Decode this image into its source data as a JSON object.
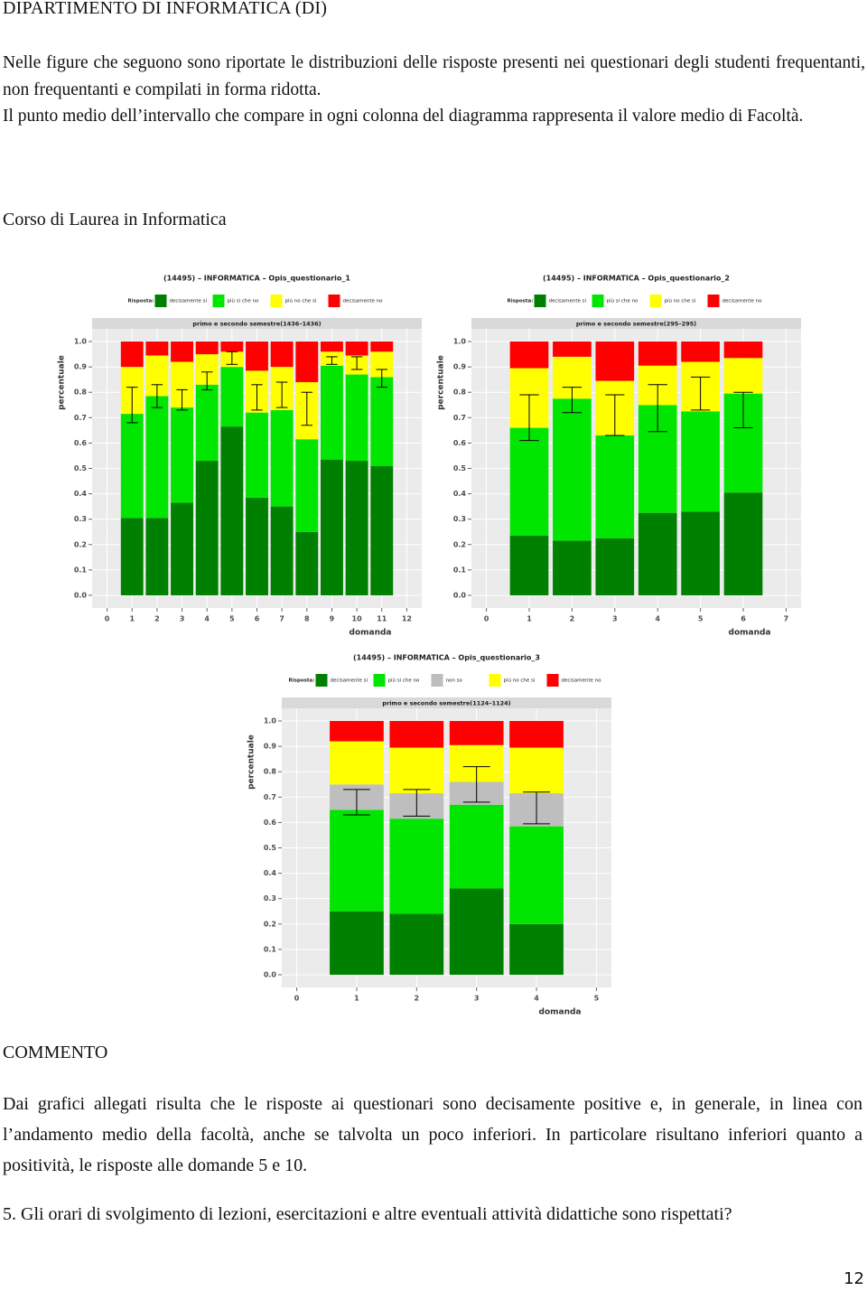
{
  "header": "DIPARTIMENTO DI INFORMATICA (DI)",
  "intro": [
    "Nelle figure che seguono sono riportate le distribuzioni delle risposte presenti nei questionari degli studenti frequentanti, non frequentanti e compilati in forma ridotta.",
    "Il punto medio dell’intervallo che compare in ogni colonna del diagramma rappresenta il valore medio di Facoltà."
  ],
  "section": "Corso di Laurea in Informatica",
  "chart_data": [
    {
      "type": "bar",
      "stacked": true,
      "title": "(14495) – INFORMATICA – Opis_questionario_1",
      "legend_title": "Risposta:",
      "strip": "primo e secondo semestre(1436–1436)",
      "xlabel": "domanda",
      "ylabel": "percentuale",
      "x": [
        1,
        2,
        3,
        4,
        5,
        6,
        7,
        8,
        9,
        10,
        11
      ],
      "series": [
        {
          "name": "decisamente si",
          "color": "#008000",
          "values": [
            0.305,
            0.305,
            0.365,
            0.53,
            0.665,
            0.385,
            0.35,
            0.25,
            0.535,
            0.53,
            0.51
          ]
        },
        {
          "name": "più si che no",
          "color": "#00e600",
          "values": [
            0.41,
            0.48,
            0.375,
            0.3,
            0.235,
            0.335,
            0.38,
            0.365,
            0.37,
            0.34,
            0.35
          ]
        },
        {
          "name": "più no che si",
          "color": "#ffff00",
          "values": [
            0.185,
            0.16,
            0.18,
            0.12,
            0.06,
            0.165,
            0.17,
            0.225,
            0.055,
            0.075,
            0.1
          ]
        },
        {
          "name": "decisamente no",
          "color": "#ff0000",
          "values": [
            0.1,
            0.055,
            0.08,
            0.05,
            0.04,
            0.115,
            0.1,
            0.16,
            0.04,
            0.055,
            0.04
          ]
        }
      ],
      "intervals": [
        [
          0.68,
          0.82
        ],
        [
          0.74,
          0.83
        ],
        [
          0.73,
          0.81
        ],
        [
          0.81,
          0.88
        ],
        [
          0.91,
          0.96
        ],
        [
          0.73,
          0.83
        ],
        [
          0.74,
          0.84
        ],
        [
          0.67,
          0.8
        ],
        [
          0.91,
          0.94
        ],
        [
          0.89,
          0.94
        ],
        [
          0.82,
          0.89
        ]
      ],
      "xlim": [
        -0.6,
        12.6
      ],
      "ylim": [
        -0.05,
        1.05
      ],
      "xticks": [
        0,
        1,
        2,
        3,
        4,
        5,
        6,
        7,
        8,
        9,
        10,
        11,
        12
      ],
      "yticks": [
        {
          "value": 0,
          "label": "0.0"
        },
        0.1,
        0.2,
        0.3,
        0.4,
        0.5,
        0.6,
        0.7,
        0.8,
        0.9,
        {
          "value": 1,
          "label": "1.0"
        }
      ],
      "grid": true
    },
    {
      "type": "bar",
      "stacked": true,
      "title": "(14495) – INFORMATICA – Opis_questionario_2",
      "legend_title": "Risposta:",
      "strip": "primo e secondo semestre(295–295)",
      "xlabel": "domanda",
      "ylabel": "percentuale",
      "x": [
        1,
        2,
        3,
        4,
        5,
        6
      ],
      "series": [
        {
          "name": "decisamente si",
          "color": "#008000",
          "values": [
            0.235,
            0.215,
            0.225,
            0.325,
            0.33,
            0.405
          ]
        },
        {
          "name": "più si che no",
          "color": "#00e600",
          "values": [
            0.425,
            0.56,
            0.405,
            0.425,
            0.395,
            0.39
          ]
        },
        {
          "name": "più no che si",
          "color": "#ffff00",
          "values": [
            0.235,
            0.165,
            0.215,
            0.155,
            0.195,
            0.14
          ]
        },
        {
          "name": "decisamente no",
          "color": "#ff0000",
          "values": [
            0.105,
            0.06,
            0.155,
            0.095,
            0.08,
            0.065
          ]
        }
      ],
      "intervals": [
        [
          0.61,
          0.79
        ],
        [
          0.72,
          0.82
        ],
        [
          0.63,
          0.79
        ],
        [
          0.645,
          0.83
        ],
        [
          0.73,
          0.86
        ],
        [
          0.66,
          0.8
        ]
      ],
      "xlim": [
        -0.35,
        7.35
      ],
      "ylim": [
        -0.05,
        1.05
      ],
      "xticks": [
        0,
        1,
        2,
        3,
        4,
        5,
        6,
        7
      ],
      "yticks": [
        {
          "value": 0,
          "label": "0.0"
        },
        0.1,
        0.2,
        0.3,
        0.4,
        0.5,
        0.6,
        0.7,
        0.8,
        0.9,
        {
          "value": 1,
          "label": "1.0"
        }
      ],
      "grid": true
    },
    {
      "type": "bar",
      "stacked": true,
      "title": "(14495) – INFORMATICA – Opis_questionario_3",
      "legend_title": "Risposta:",
      "strip": "primo e secondo semestre(1124–1124)",
      "xlabel": "domanda",
      "ylabel": "percentuale",
      "x": [
        1,
        2,
        3,
        4
      ],
      "series": [
        {
          "name": "decisamente si",
          "color": "#008000",
          "values": [
            0.25,
            0.24,
            0.34,
            0.2
          ]
        },
        {
          "name": "più si che no",
          "color": "#00e600",
          "values": [
            0.4,
            0.375,
            0.33,
            0.385
          ]
        },
        {
          "name": "non so",
          "color": "#bebebe",
          "values": [
            0.1,
            0.1,
            0.09,
            0.13
          ]
        },
        {
          "name": "più no che si",
          "color": "#ffff00",
          "values": [
            0.17,
            0.18,
            0.145,
            0.18
          ]
        },
        {
          "name": "decisamente no",
          "color": "#ff0000",
          "values": [
            0.08,
            0.105,
            0.095,
            0.105
          ]
        }
      ],
      "intervals": [
        [
          0.63,
          0.73
        ],
        [
          0.625,
          0.73
        ],
        [
          0.68,
          0.82
        ],
        [
          0.595,
          0.72
        ]
      ],
      "xlim": [
        -0.25,
        5.25
      ],
      "ylim": [
        -0.05,
        1.05
      ],
      "xticks": [
        0,
        1,
        2,
        3,
        4,
        5
      ],
      "yticks": [
        {
          "value": 0,
          "label": "0.0"
        },
        0.1,
        0.2,
        0.3,
        0.4,
        0.5,
        0.6,
        0.7,
        0.8,
        0.9,
        {
          "value": 1,
          "label": "1.0"
        }
      ],
      "grid": true
    }
  ],
  "comment": {
    "title": "COMMENTO",
    "text": "Dai grafici allegati risulta che le risposte ai questionari sono decisamente positive e, in generale, in linea con l’andamento medio della facoltà, anche se talvolta un poco inferiori. In particolare risultano inferiori quanto a positività, le risposte alle domande 5 e 10."
  },
  "question": "5. Gli orari di svolgimento di lezioni, esercitazioni e altre eventuali attività didattiche sono rispettati?",
  "page_number": "12"
}
